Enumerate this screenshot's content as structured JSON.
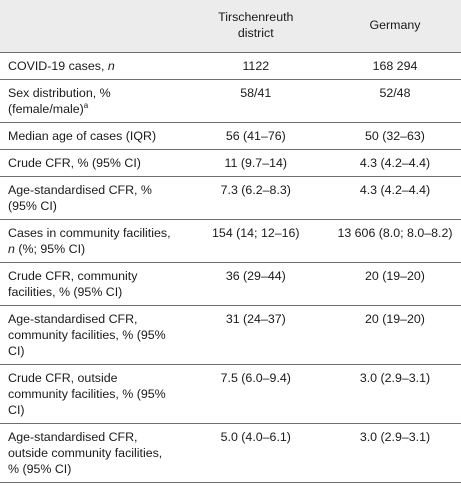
{
  "headers": {
    "col1": "",
    "col2_line1": "Tirschenreuth",
    "col2_line2": "district",
    "col3": "Germany"
  },
  "rows": [
    {
      "label": "COVID-19 cases, ",
      "label_italic": "n",
      "tirschenreuth": "1122",
      "germany": "168 294"
    },
    {
      "label": "Sex distribution, % (female/male)",
      "label_sup": "a",
      "tirschenreuth": "58/41",
      "germany": "52/48"
    },
    {
      "label": "Median age of cases (IQR)",
      "tirschenreuth": "56 (41–76)",
      "germany": "50 (32–63)"
    },
    {
      "label": "Crude CFR, % (95% CI)",
      "tirschenreuth": "11 (9.7–14)",
      "germany": "4.3 (4.2–4.4)"
    },
    {
      "label": "Age-standardised CFR, % (95% CI)",
      "tirschenreuth": "7.3 (6.2–8.3)",
      "germany": "4.3 (4.2–4.4)"
    },
    {
      "label": "Cases in community facilities, ",
      "label_italic": "n",
      "label_after": " (%; 95% CI)",
      "tirschenreuth": "154 (14; 12–16)",
      "germany": "13 606 (8.0; 8.0–8.2)"
    },
    {
      "label": "Crude CFR, community facilities, % (95% CI)",
      "tirschenreuth": "36 (29–44)",
      "germany": "20 (19–20)"
    },
    {
      "label": "Age-standardised CFR, community facilities, % (95% CI)",
      "tirschenreuth": "31 (24–37)",
      "germany": "20 (19–20)"
    },
    {
      "label": "Crude CFR, outside community facilities, % (95% CI)",
      "tirschenreuth": "7.5 (6.0–9.4)",
      "germany": "3.0 (2.9–3.1)"
    },
    {
      "label": "Age-standardised CFR, outside community facilities, % (95% CI)",
      "tirschenreuth": "5.0 (4.0–6.1)",
      "germany": "3.0 (2.9–3.1)"
    }
  ]
}
